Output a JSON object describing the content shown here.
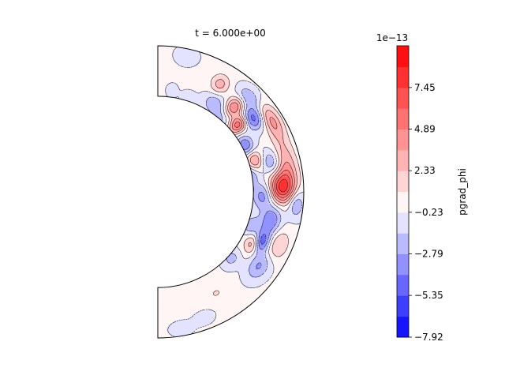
{
  "chart_data": {
    "type": "heatmap",
    "title": "t = 6.000e+00",
    "colorbar": {
      "label": "pgrad_phi",
      "exponent_label": "1e−13",
      "min": -7.92,
      "max": 10.02,
      "ticks": [
        {
          "value": 7.45,
          "label": "7.45"
        },
        {
          "value": 4.89,
          "label": "4.89"
        },
        {
          "value": 2.33,
          "label": "2.33"
        },
        {
          "value": -0.23,
          "label": "−0.23"
        },
        {
          "value": -2.79,
          "label": "−2.79"
        },
        {
          "value": -5.35,
          "label": "−5.35"
        },
        {
          "value": -7.92,
          "label": "−7.92"
        }
      ],
      "levels": [
        -7.92,
        -6.64,
        -5.35,
        -4.07,
        -2.79,
        -1.51,
        -0.23,
        1.05,
        2.33,
        3.61,
        4.89,
        6.17,
        7.45,
        8.73,
        10.02
      ],
      "colormap": [
        "#0000ff",
        "#ffffff",
        "#ff0000"
      ]
    },
    "field_features": [
      {
        "r": 0.72,
        "theta": 58,
        "value": -2.5,
        "sr": 0.05,
        "st": 4
      },
      {
        "r": 0.85,
        "theta": 60,
        "value": 3.0,
        "sr": 0.05,
        "st": 3
      },
      {
        "r": 0.66,
        "theta": 50,
        "value": -2.0,
        "sr": 0.05,
        "st": 4
      },
      {
        "r": 0.78,
        "theta": 48,
        "value": 5.0,
        "sr": 0.05,
        "st": 3
      },
      {
        "r": 0.9,
        "theta": 46,
        "value": -3.0,
        "sr": 0.04,
        "st": 4
      },
      {
        "r": 0.72,
        "theta": 40,
        "value": 6.0,
        "sr": 0.05,
        "st": 3
      },
      {
        "r": 0.82,
        "theta": 38,
        "value": -5.0,
        "sr": 0.05,
        "st": 4
      },
      {
        "r": 0.92,
        "theta": 32,
        "value": 4.0,
        "sr": 0.04,
        "st": 6
      },
      {
        "r": 0.68,
        "theta": 28,
        "value": -4.0,
        "sr": 0.04,
        "st": 4
      },
      {
        "r": 0.7,
        "theta": 18,
        "value": 4.0,
        "sr": 0.04,
        "st": 4
      },
      {
        "r": 0.64,
        "theta": 10,
        "value": -3.0,
        "sr": 0.04,
        "st": 4
      },
      {
        "r": 0.8,
        "theta": 15,
        "value": -3.0,
        "sr": 0.05,
        "st": 4
      },
      {
        "r": 0.9,
        "theta": 12,
        "value": 3.5,
        "sr": 0.05,
        "st": 8
      },
      {
        "r": 0.85,
        "theta": 2,
        "value": 7.5,
        "sr": 0.06,
        "st": 5
      },
      {
        "r": 0.72,
        "theta": -2,
        "value": -3.5,
        "sr": 0.05,
        "st": 5
      },
      {
        "r": 0.95,
        "theta": -5,
        "value": -3.0,
        "sr": 0.04,
        "st": 4
      },
      {
        "r": 0.8,
        "theta": -14,
        "value": -4.0,
        "sr": 0.05,
        "st": 5
      },
      {
        "r": 0.68,
        "theta": -20,
        "value": -2.5,
        "sr": 0.04,
        "st": 4
      },
      {
        "r": 0.75,
        "theta": -28,
        "value": 6.0,
        "sr": 0.04,
        "st": 4
      },
      {
        "r": 0.78,
        "theta": -26,
        "value": -7.5,
        "sr": 0.04,
        "st": 4
      },
      {
        "r": 0.86,
        "theta": -36,
        "value": -3.0,
        "sr": 0.05,
        "st": 5
      },
      {
        "r": 0.68,
        "theta": -42,
        "value": -2.0,
        "sr": 0.04,
        "st": 4
      },
      {
        "r": 0.9,
        "theta": -24,
        "value": 2.5,
        "sr": 0.05,
        "st": 5
      },
      {
        "r": 0.95,
        "theta": 78,
        "value": -1.5,
        "sr": 0.04,
        "st": 3
      },
      {
        "r": 0.7,
        "theta": 82,
        "value": -1.2,
        "sr": 0.03,
        "st": 2
      },
      {
        "r": 0.95,
        "theta": -80,
        "value": -1.5,
        "sr": 0.03,
        "st": 3
      },
      {
        "r": 0.62,
        "theta": -85,
        "value": 1.5,
        "sr": 0.03,
        "st": 2
      },
      {
        "r": 0.92,
        "theta": -70,
        "value": -1.2,
        "sr": 0.03,
        "st": 3
      },
      {
        "r": 0.68,
        "theta": 72,
        "value": -1.2,
        "sr": 0.03,
        "st": 3
      },
      {
        "r": 0.8,
        "theta": -60,
        "value": 1.2,
        "sr": 0.03,
        "st": 3
      }
    ]
  }
}
